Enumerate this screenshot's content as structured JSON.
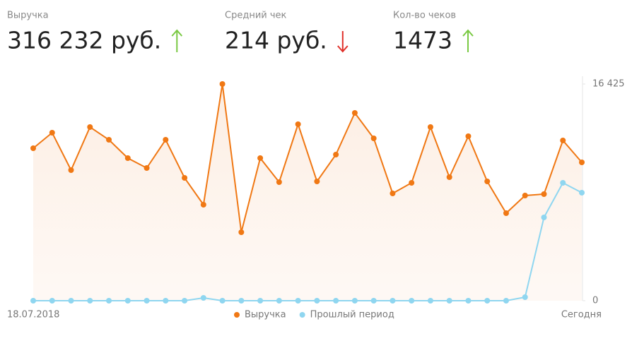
{
  "kpis": [
    {
      "label": "Выручка",
      "value": "316 232 руб.",
      "trend": "up"
    },
    {
      "label": "Средний чек",
      "value": "214 руб.",
      "trend": "down"
    },
    {
      "label": "Кол-во чеков",
      "value": "1473",
      "trend": "up"
    }
  ],
  "chart_data": {
    "type": "line",
    "categories": [
      "18.07.2018",
      null,
      null,
      null,
      null,
      null,
      null,
      null,
      null,
      null,
      null,
      null,
      null,
      null,
      null,
      null,
      null,
      null,
      null,
      null,
      null,
      null,
      null,
      null,
      null,
      null,
      null,
      null,
      null,
      "Сегодня"
    ],
    "series": [
      {
        "name": "Выручка",
        "color": "#f07814",
        "values": [
          11556,
          12733,
          9898,
          13161,
          12198,
          10807,
          10058,
          12198,
          9309,
          7276,
          16425,
          5190,
          10807,
          8988,
          13375,
          9042,
          11075,
          14231,
          12305,
          8132,
          8935,
          13161,
          9363,
          12466,
          9042,
          6634,
          7972,
          8079,
          12145,
          10486
        ]
      },
      {
        "name": "Прошлый период",
        "color": "#8fd6f0",
        "values": [
          0,
          0,
          0,
          0,
          0,
          0,
          0,
          0,
          0,
          214,
          0,
          0,
          0,
          0,
          0,
          0,
          0,
          0,
          0,
          0,
          0,
          0,
          0,
          0,
          0,
          0,
          268,
          6313,
          8935,
          8186
        ]
      }
    ],
    "ylim": [
      0,
      16425
    ],
    "yticks": [
      0,
      {
        "value": 16425,
        "label": "16 425"
      }
    ],
    "legend": "bottom"
  }
}
